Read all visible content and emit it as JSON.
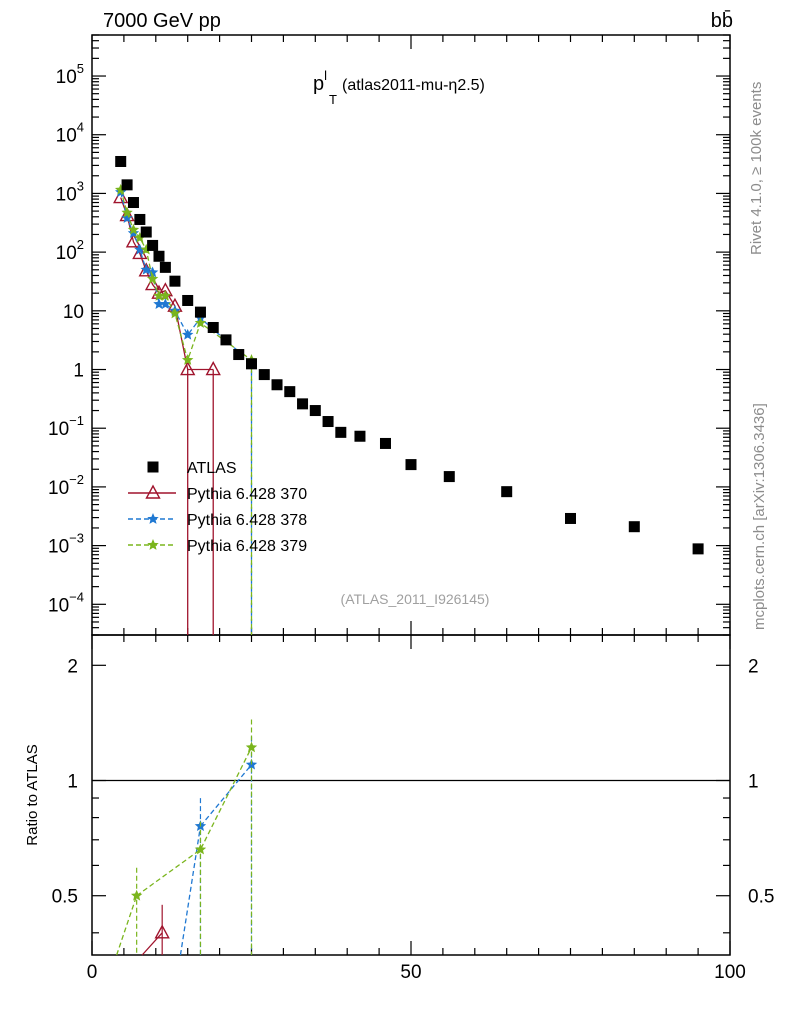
{
  "header": {
    "energy_label": "7000 GeV pp",
    "process_label": "bb̄"
  },
  "side_labels": {
    "rivet": "Rivet 4.1.0, ≥ 100k events",
    "mcplots": "mcplots.cern.ch [arXiv:1306.3436]"
  },
  "plot_title": {
    "main": "p",
    "sup": "l",
    "sub": "T",
    "suffix": "(atlas2011-mu-η2.5)"
  },
  "watermark": "(ATLAS_2011_I926145)",
  "ratio_ylabel": "Ratio to ATLAS",
  "legend": [
    {
      "name": "ATLAS",
      "color": "#000000",
      "marker": "square",
      "dashed": false
    },
    {
      "name": "Pythia 6.428 370",
      "color": "#a0142d",
      "marker": "triangle",
      "dashed": false
    },
    {
      "name": "Pythia 6.428 378",
      "color": "#1f78d2",
      "marker": "star",
      "dashed": true
    },
    {
      "name": "Pythia 6.428 379",
      "color": "#7ab51d",
      "marker": "star",
      "dashed": true
    }
  ],
  "axis_labels": {
    "x": [
      "0",
      "50",
      "100"
    ],
    "main_y": [
      {
        "base": "10",
        "exp": "5"
      },
      {
        "base": "10",
        "exp": "4"
      },
      {
        "base": "10",
        "exp": "3"
      },
      {
        "base": "10",
        "exp": "2"
      },
      {
        "base": "10",
        "exp": ""
      },
      {
        "base": "1",
        "exp": ""
      },
      {
        "base": "10",
        "exp": "−1"
      },
      {
        "base": "10",
        "exp": "−2"
      },
      {
        "base": "10",
        "exp": "−3"
      },
      {
        "base": "10",
        "exp": "−4"
      }
    ],
    "ratio_y": [
      "2",
      "1",
      "0.5"
    ]
  },
  "chart_data": {
    "type": "scatter",
    "xlim": [
      0,
      100
    ],
    "main_ylim": [
      3e-05,
      500000
    ],
    "main_yscale": "log",
    "ratio_ylim": [
      0.35,
      2.4
    ],
    "ratio_yscale": "log",
    "series": [
      {
        "name": "ATLAS",
        "x": [
          4.5,
          5.5,
          6.5,
          7.5,
          8.5,
          9.5,
          10.5,
          11.5,
          13,
          15,
          17,
          19,
          21,
          23,
          25,
          27,
          29,
          31,
          33,
          35,
          37,
          39,
          42,
          46,
          50,
          56,
          65,
          75,
          85,
          95
        ],
        "y": [
          3500,
          1400,
          700,
          360,
          220,
          130,
          85,
          55,
          32,
          15,
          9.5,
          5.2,
          3.2,
          1.8,
          1.25,
          0.82,
          0.55,
          0.42,
          0.26,
          0.2,
          0.13,
          0.085,
          0.073,
          0.055,
          0.024,
          0.015,
          0.0083,
          0.0029,
          0.0021,
          0.00088
        ]
      },
      {
        "name": "Pythia 6.428 370",
        "x": [
          4.5,
          5.5,
          6.5,
          7.5,
          8.5,
          9.5,
          10.5,
          11.5,
          13,
          15,
          19
        ],
        "y": [
          850,
          420,
          150,
          95,
          48,
          28,
          20,
          22,
          12,
          1,
          1
        ]
      },
      {
        "name": "Pythia 6.428 378",
        "x": [
          4.5,
          5.5,
          6.5,
          7.5,
          8.5,
          9.5,
          10.5,
          11.5,
          13,
          15,
          17,
          25
        ],
        "y": [
          1050,
          380,
          210,
          110,
          50,
          45,
          13,
          13,
          10,
          3.9,
          7.5,
          1.3
        ]
      },
      {
        "name": "Pythia 6.428 379",
        "x": [
          4.5,
          5.5,
          6.5,
          7.5,
          8.5,
          9.5,
          10.5,
          11.5,
          13,
          15,
          17,
          25
        ],
        "y": [
          1150,
          470,
          240,
          175,
          110,
          35,
          18,
          18,
          9,
          1.45,
          6.2,
          1.45
        ]
      }
    ],
    "ratio_series": [
      {
        "name": "Pythia 6.428 370",
        "x": [
          11
        ],
        "y": [
          0.4
        ]
      },
      {
        "name": "Pythia 6.428 378",
        "x": [
          17,
          25
        ],
        "y": [
          0.76,
          1.1
        ]
      },
      {
        "name": "Pythia 6.428 379",
        "x": [
          7,
          17,
          25
        ],
        "y": [
          0.5,
          0.66,
          1.22
        ]
      }
    ]
  }
}
